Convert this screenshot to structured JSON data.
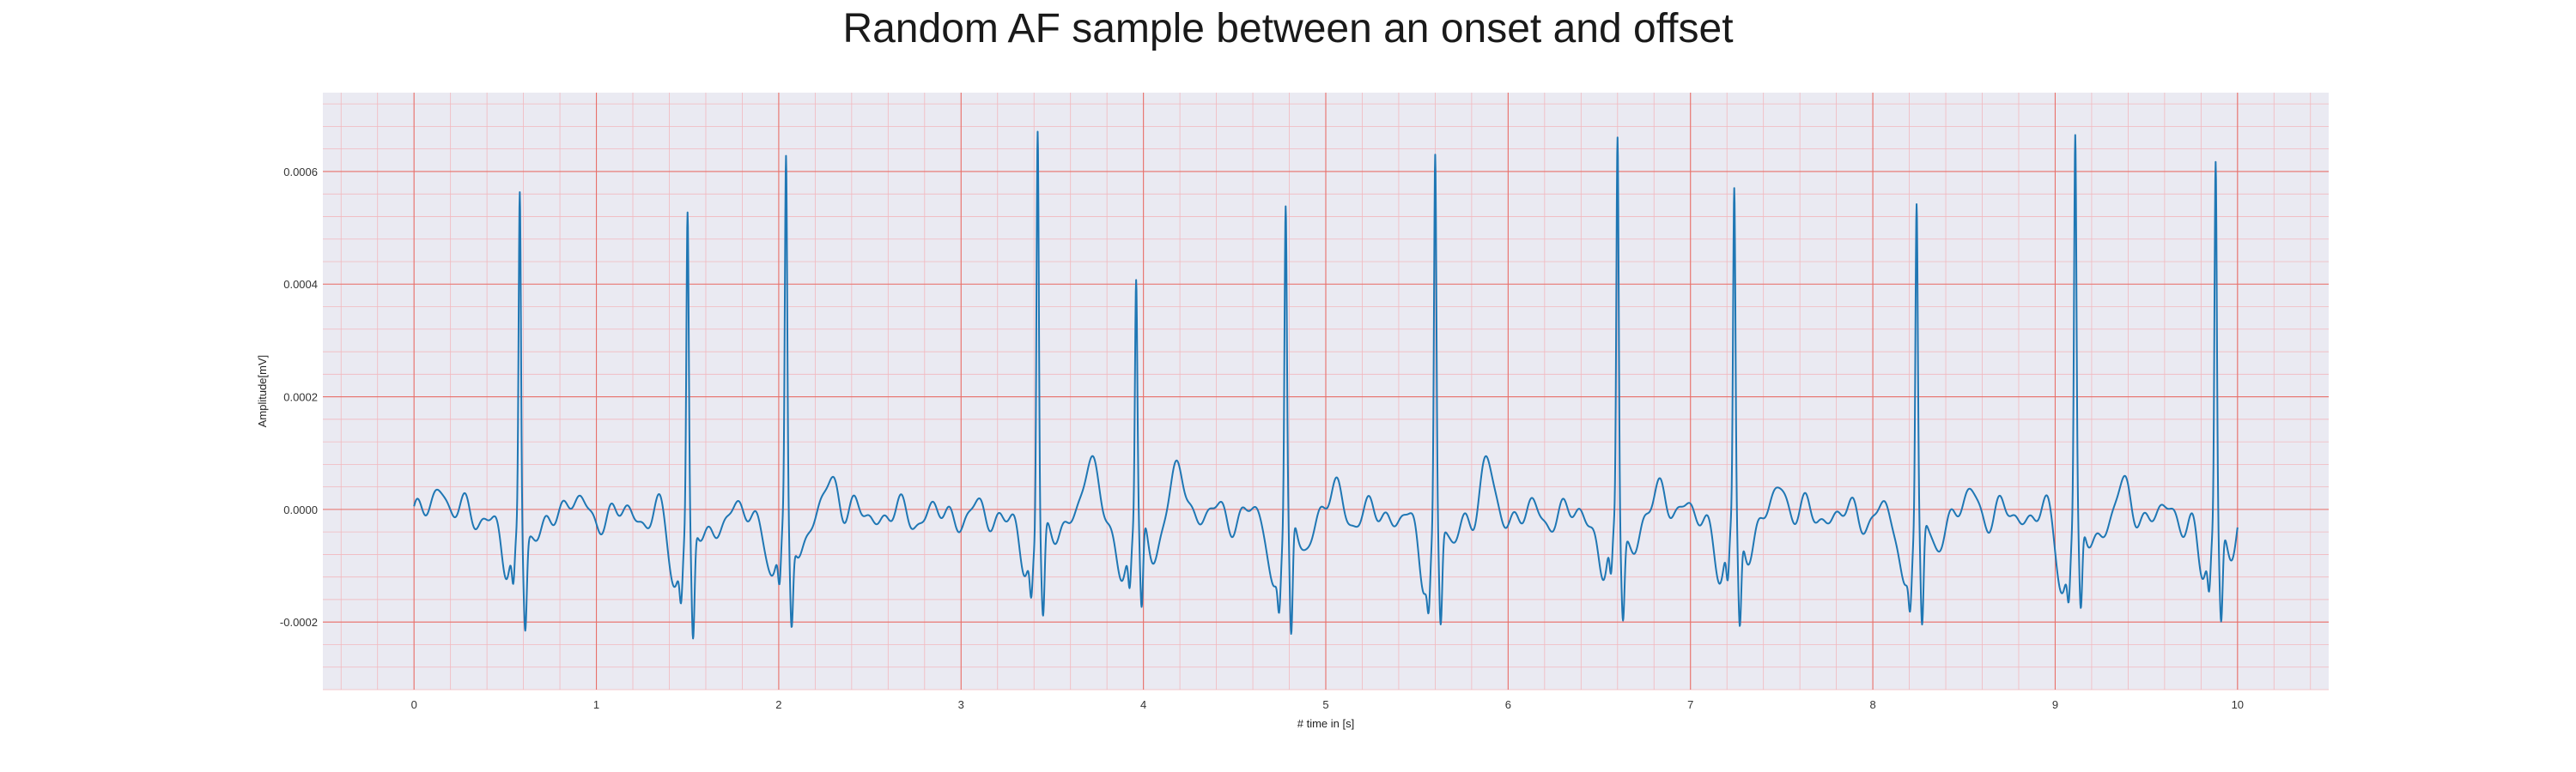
{
  "chart_data": {
    "type": "line",
    "title": "Random AF sample between an onset and offset",
    "xlabel": "# time in [s]",
    "ylabel": "Amplitude[mV]",
    "xlim": [
      -0.5,
      10.5
    ],
    "ylim": [
      -0.00032,
      0.00074
    ],
    "xticks": [
      0,
      1,
      2,
      3,
      4,
      5,
      6,
      7,
      8,
      9,
      10
    ],
    "xtick_labels": [
      "0",
      "1",
      "2",
      "3",
      "4",
      "5",
      "6",
      "7",
      "8",
      "9",
      "10"
    ],
    "yticks": [
      -0.0002,
      0.0,
      0.0002,
      0.0004,
      0.0006
    ],
    "ytick_labels": [
      "-0.0002",
      "0.0000",
      "0.0002",
      "0.0004",
      "0.0006"
    ],
    "grid": true,
    "minor_grid": true,
    "colors": {
      "line": "#1f77b4",
      "major_grid": "#e8706a",
      "minor_grid": "#f2b8be",
      "plot_background": "#eaeaf2"
    },
    "series": [
      {
        "sampling": "approximate peaks traced from the figure",
        "r_peaks": [
          {
            "t": 0.58,
            "r": 0.00058,
            "s": -0.0002
          },
          {
            "t": 1.5,
            "r": 0.00052,
            "s": -0.00025
          },
          {
            "t": 2.04,
            "r": 0.0006,
            "s": -0.00021
          },
          {
            "t": 3.42,
            "r": 0.0007,
            "s": -0.0002
          },
          {
            "t": 3.96,
            "r": 0.0004,
            "s": -0.00021
          },
          {
            "t": 4.78,
            "r": 0.00052,
            "s": -0.00027
          },
          {
            "t": 5.6,
            "r": 0.00062,
            "s": -0.00022
          },
          {
            "t": 6.6,
            "r": 0.00066,
            "s": -0.00019
          },
          {
            "t": 7.24,
            "r": 0.00055,
            "s": -0.00022
          },
          {
            "t": 8.24,
            "r": 0.00053,
            "s": -0.00024
          },
          {
            "t": 9.11,
            "r": 0.00064,
            "s": -0.00021
          },
          {
            "t": 9.88,
            "r": 0.00062,
            "s": -0.00021
          }
        ],
        "waves": [
          {
            "t": 0.15,
            "a": 5.5e-05
          },
          {
            "t": 0.85,
            "a": 3.5e-05
          },
          {
            "t": 2.3,
            "a": 7e-05
          },
          {
            "t": 3.7,
            "a": 9.5e-05
          },
          {
            "t": 4.2,
            "a": 8e-05
          },
          {
            "t": 5.05,
            "a": 4e-05
          },
          {
            "t": 5.88,
            "a": 8e-05
          },
          {
            "t": 6.85,
            "a": 5.5e-05
          },
          {
            "t": 7.5,
            "a": 5.5e-05
          },
          {
            "t": 8.55,
            "a": 3.5e-05
          },
          {
            "t": 9.38,
            "a": 4e-05
          }
        ],
        "t_start": 0.0,
        "t_end": 10.0,
        "baseline": -1e-05
      }
    ]
  }
}
